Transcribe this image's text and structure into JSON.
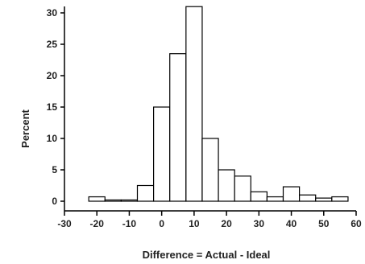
{
  "chart_data": {
    "type": "bar",
    "subtype": "histogram",
    "xlabel": "Difference = Actual - Ideal",
    "ylabel": "Percent",
    "xlim": [
      -30,
      60
    ],
    "ylim": [
      0,
      30
    ],
    "x_ticks": [
      -30,
      -20,
      -10,
      0,
      10,
      20,
      30,
      40,
      50,
      60
    ],
    "x_tick_labels": [
      "-30",
      "-20",
      "-10",
      "0",
      "10",
      "20",
      "30",
      "40",
      "50",
      "60"
    ],
    "y_ticks": [
      0,
      5,
      10,
      15,
      20,
      25,
      30
    ],
    "y_tick_labels": [
      "0",
      "5",
      "10",
      "15",
      "20",
      "25",
      "30"
    ],
    "grid": false,
    "legend": "none",
    "bins": [
      {
        "x0": -22.5,
        "x1": -17.5,
        "value": 0.7
      },
      {
        "x0": -17.5,
        "x1": -12.5,
        "value": 0.2
      },
      {
        "x0": -12.5,
        "x1": -7.5,
        "value": 0.2
      },
      {
        "x0": -7.5,
        "x1": -2.5,
        "value": 2.5
      },
      {
        "x0": -2.5,
        "x1": 2.5,
        "value": 15.0
      },
      {
        "x0": 2.5,
        "x1": 7.5,
        "value": 23.5
      },
      {
        "x0": 7.5,
        "x1": 12.5,
        "value": 31.0
      },
      {
        "x0": 12.5,
        "x1": 17.5,
        "value": 10.0
      },
      {
        "x0": 17.5,
        "x1": 22.5,
        "value": 5.0
      },
      {
        "x0": 22.5,
        "x1": 27.5,
        "value": 4.0
      },
      {
        "x0": 27.5,
        "x1": 32.5,
        "value": 1.5
      },
      {
        "x0": 32.5,
        "x1": 37.5,
        "value": 0.7
      },
      {
        "x0": 37.5,
        "x1": 42.5,
        "value": 2.3
      },
      {
        "x0": 42.5,
        "x1": 47.5,
        "value": 1.0
      },
      {
        "x0": 47.5,
        "x1": 52.5,
        "value": 0.5
      },
      {
        "x0": 52.5,
        "x1": 57.5,
        "value": 0.7
      }
    ]
  }
}
